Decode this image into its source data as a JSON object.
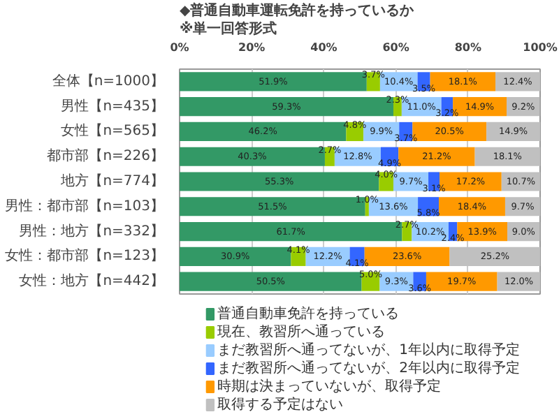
{
  "chart_data": {
    "type": "bar",
    "orientation": "horizontal",
    "stacked": true,
    "title": "◆普通自動車運転免許を持っているか",
    "subtitle": "※単一回答形式",
    "categories": [
      "全体【n=1000】",
      "男性【n=435】",
      "女性【n=565】",
      "都市部【n=226】",
      "地方【n=774】",
      "男性：都市部【n=103】",
      "男性：地方【n=332】",
      "女性：都市部【n=123】",
      "女性：地方【n=442】"
    ],
    "series": [
      {
        "name": "普通自動車免許を持っている",
        "color": "#339966",
        "values": [
          51.9,
          59.3,
          46.2,
          40.3,
          55.3,
          51.5,
          61.7,
          30.9,
          50.5
        ],
        "value_labels": [
          "51.9%",
          "59.3%",
          "46.2%",
          "40.3%",
          "55.3%",
          "51.5%",
          "61.7%",
          "30.9%",
          "50.5%"
        ]
      },
      {
        "name": "現在、教習所へ通っている",
        "color": "#99cc00",
        "values": [
          3.7,
          2.3,
          4.8,
          2.7,
          4.0,
          1.0,
          2.7,
          4.1,
          5.0
        ],
        "value_labels": [
          "3.7%",
          "2.3%",
          "4.8%",
          "2.7%",
          "4.0%",
          "1.0%",
          "2.7%",
          "4.1%",
          "5.0%"
        ]
      },
      {
        "name": "まだ教習所へ通ってないが、1年以内に取得予定",
        "color": "#99ccff",
        "values": [
          10.4,
          11.0,
          9.9,
          12.8,
          9.7,
          13.6,
          10.2,
          12.2,
          9.3
        ],
        "value_labels": [
          "10.4%",
          "11.0%",
          "9.9%",
          "12.8%",
          "9.7%",
          "13.6%",
          "10.2%",
          "12.2%",
          "9.3%"
        ]
      },
      {
        "name": "まだ教習所へ通ってないが、2年以内に取得予定",
        "color": "#3366ff",
        "values": [
          3.5,
          3.2,
          3.7,
          4.9,
          3.1,
          5.8,
          2.4,
          4.1,
          3.6
        ],
        "value_labels": [
          "3.5%",
          "3.2%",
          "3.7%",
          "4.9%",
          "3.1%",
          "5.8%",
          "2.4%",
          "4.1%",
          "3.6%"
        ]
      },
      {
        "name": "時期は決まっていないが、取得予定",
        "color": "#ff9900",
        "values": [
          18.1,
          14.9,
          20.5,
          21.2,
          17.2,
          18.4,
          13.9,
          23.6,
          19.7
        ],
        "value_labels": [
          "18.1%",
          "14.9%",
          "20.5%",
          "21.2%",
          "17.2%",
          "18.4%",
          "13.9%",
          "23.6%",
          "19.7%"
        ]
      },
      {
        "name": "取得する予定はない",
        "color": "#c0c0c0",
        "values": [
          12.4,
          9.2,
          14.9,
          18.1,
          10.7,
          9.7,
          9.0,
          25.2,
          12.0
        ],
        "value_labels": [
          "12.4%",
          "9.2%",
          "14.9%",
          "18.1%",
          "10.7%",
          "9.7%",
          "9.0%",
          "25.2%",
          "12.0%"
        ]
      }
    ],
    "xlim": [
      0,
      100
    ],
    "xticks": [
      {
        "value": 0,
        "label": "0%"
      },
      {
        "value": 20,
        "label": "20%"
      },
      {
        "value": 40,
        "label": "40%"
      },
      {
        "value": 60,
        "label": "60%"
      },
      {
        "value": 80,
        "label": "80%"
      },
      {
        "value": 100,
        "label": "100%"
      }
    ],
    "grid": "x",
    "legend": "bottom"
  }
}
